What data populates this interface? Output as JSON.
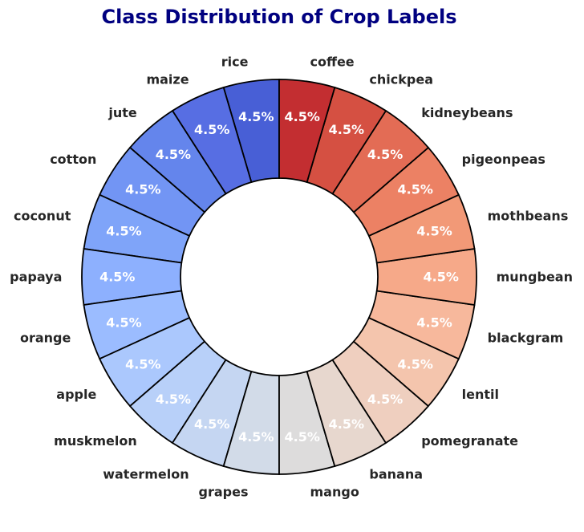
{
  "chart_data": {
    "type": "pie",
    "title": "Class Distribution of Crop Labels",
    "donut": true,
    "categories": [
      "rice",
      "maize",
      "jute",
      "cotton",
      "coconut",
      "papaya",
      "orange",
      "apple",
      "muskmelon",
      "watermelon",
      "grapes",
      "mango",
      "banana",
      "pomegranate",
      "lentil",
      "blackgram",
      "mungbean",
      "mothbeans",
      "pigeonpeas",
      "kidneybeans",
      "chickpea",
      "coffee"
    ],
    "values": [
      4.5,
      4.5,
      4.5,
      4.5,
      4.5,
      4.5,
      4.5,
      4.5,
      4.5,
      4.5,
      4.5,
      4.5,
      4.5,
      4.5,
      4.5,
      4.5,
      4.5,
      4.5,
      4.5,
      4.5,
      4.5,
      4.5
    ],
    "value_labels": [
      "4.5%",
      "4.5%",
      "4.5%",
      "4.5%",
      "4.5%",
      "4.5%",
      "4.5%",
      "4.5%",
      "4.5%",
      "4.5%",
      "4.5%",
      "4.5%",
      "4.5%",
      "4.5%",
      "4.5%",
      "4.5%",
      "4.5%",
      "4.5%",
      "4.5%",
      "4.5%",
      "4.5%",
      "4.5%"
    ],
    "colors": [
      "#485fd6",
      "#576ee3",
      "#6485ec",
      "#7295f4",
      "#7fa4f9",
      "#8db0fe",
      "#9bbcff",
      "#abc8fd",
      "#b8d0f9",
      "#c5d6f2",
      "#d2dbe8",
      "#dddcdc",
      "#e7d7ce",
      "#efcfbf",
      "#f4c5ad",
      "#f7b89c",
      "#f6a989",
      "#f29977",
      "#ec8164",
      "#e36c55",
      "#d55042",
      "#c32e31"
    ],
    "title_color": "#000080"
  }
}
